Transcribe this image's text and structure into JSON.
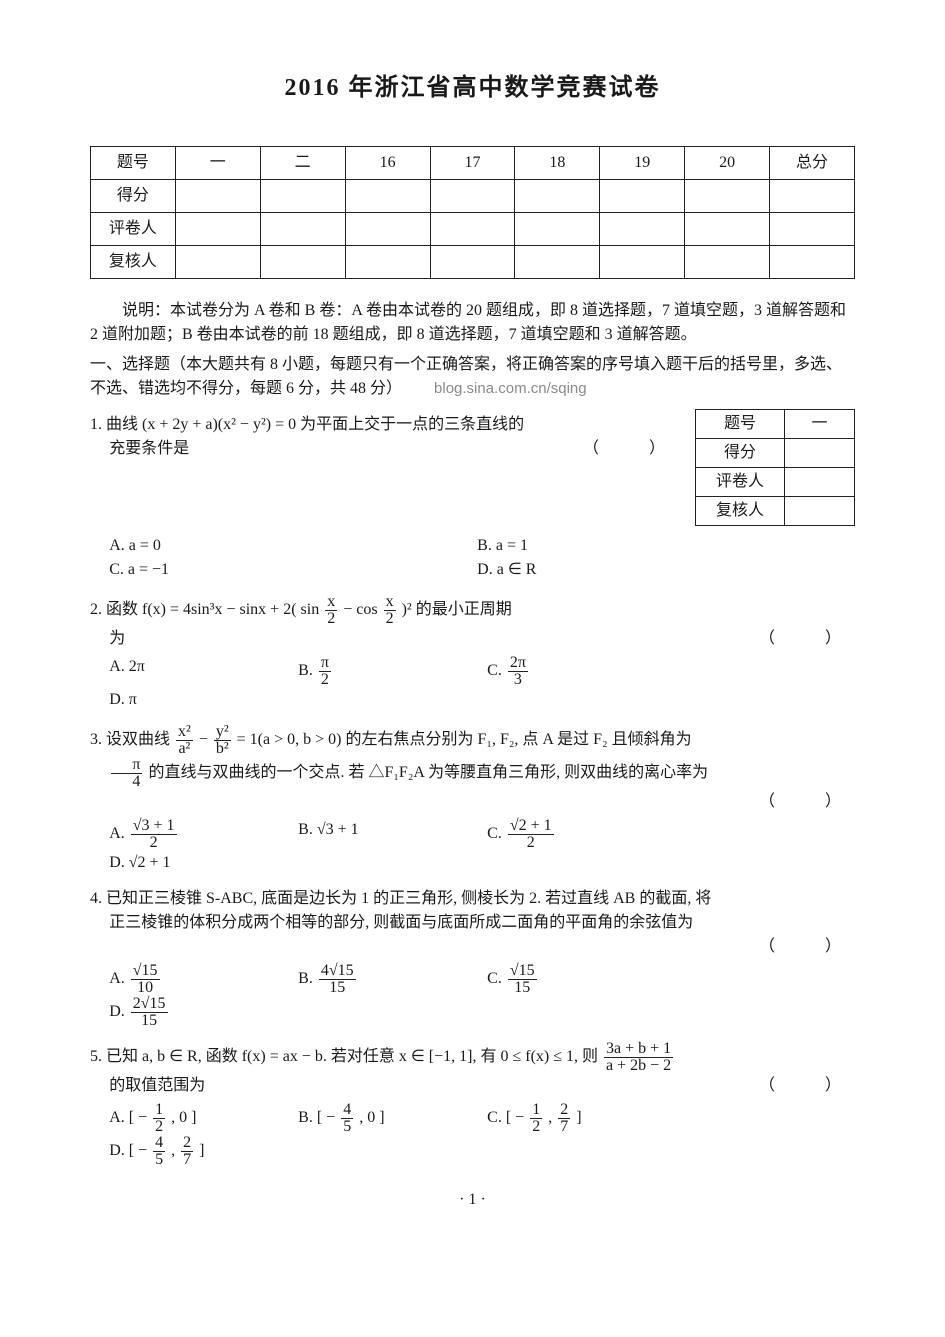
{
  "title": "2016 年浙江省高中数学竞赛试卷",
  "score_table": {
    "headers": [
      "题号",
      "一",
      "二",
      "16",
      "17",
      "18",
      "19",
      "20",
      "总分"
    ],
    "rows": [
      "得分",
      "评卷人",
      "复核人"
    ]
  },
  "instructions": "说明：本试卷分为 A 卷和 B 卷：A 卷由本试卷的 20 题组成，即 8 道选择题，7 道填空题，3 道解答题和 2 道附加题；B 卷由本试卷的前 18 题组成，即 8 道选择题，7 道填空题和 3 道解答题。",
  "section1_heading": "一、选择题（本大题共有 8 小题，每题只有一个正确答案，将正确答案的序号填入题干后的括号里，多选、不选、错选均不得分，每题 6 分，共 48 分）",
  "watermark": "blog.sina.com.cn/sqing",
  "mini_table": {
    "rows": [
      [
        "题号",
        "一"
      ],
      [
        "得分",
        ""
      ],
      [
        "评卷人",
        ""
      ],
      [
        "复核人",
        ""
      ]
    ]
  },
  "q1": {
    "text_a": "1. 曲线 (x + 2y + a)(x² − y²) = 0 为平面上交于一点的三条直线的",
    "text_b": "充要条件是",
    "paren": "（　　）",
    "A": "A. a = 0",
    "B": "B. a = 1",
    "C": "C. a = −1",
    "D": "D. a ∈ R"
  },
  "q2": {
    "text_a": "2. 函数 f(x) = 4sin³x − sinx + 2( sin",
    "text_b": " − cos",
    "text_c": " )² 的最小正周期",
    "frac_half_num": "x",
    "frac_half_den": "2",
    "line2": "为",
    "paren": "（　　）",
    "A": "A. 2π",
    "B_pre": "B. ",
    "B_num": "π",
    "B_den": "2",
    "C_pre": "C. ",
    "C_num": "2π",
    "C_den": "3",
    "D": "D. π"
  },
  "q3": {
    "text_a": "3. 设双曲线 ",
    "x2": "x²",
    "a2": "a²",
    "minus": " − ",
    "y2": "y²",
    "b2": "b²",
    "text_b": " = 1(a > 0, b > 0) 的左右焦点分别为 F₁, F₂, 点 A 是过 F₂ 且倾斜角为",
    "line2_pre": "",
    "pi4_num": "π",
    "pi4_den": "4",
    "line2_post": " 的直线与双曲线的一个交点. 若 △F₁F₂A 为等腰直角三角形, 则双曲线的离心率为",
    "paren": "（　　）",
    "A_pre": "A. ",
    "A_num": "√3 + 1",
    "A_den": "2",
    "B": "B. √3 + 1",
    "C_pre": "C. ",
    "C_num": "√2 + 1",
    "C_den": "2",
    "D": "D. √2 + 1"
  },
  "q4": {
    "text_a": "4. 已知正三棱锥 S-ABC, 底面是边长为 1 的正三角形, 侧棱长为 2. 若过直线 AB 的截面, 将",
    "text_b": "正三棱锥的体积分成两个相等的部分, 则截面与底面所成二面角的平面角的余弦值为",
    "paren": "（　　）",
    "A_pre": "A. ",
    "A_num": "√15",
    "A_den": "10",
    "B_pre": "B. ",
    "B_num": "4√15",
    "B_den": "15",
    "C_pre": "C. ",
    "C_num": "√15",
    "C_den": "15",
    "D_pre": "D. ",
    "D_num": "2√15",
    "D_den": "15"
  },
  "q5": {
    "text_a": "5. 已知 a, b ∈ R, 函数 f(x) = ax − b. 若对任意 x ∈ [−1, 1], 有 0 ≤ f(x) ≤ 1, 则 ",
    "frac_num": "3a + b + 1",
    "frac_den": "a + 2b − 2",
    "text_b": "的取值范围为",
    "paren": "（　　）",
    "A_pre": "A. [ − ",
    "A_num": "1",
    "A_den": "2",
    "A_post": " , 0 ]",
    "B_pre": "B. [ − ",
    "B_num": "4",
    "B_den": "5",
    "B_post": " , 0 ]",
    "C_pre": "C. [ − ",
    "C_num1": "1",
    "C_den1": "2",
    "C_mid": " , ",
    "C_num2": "2",
    "C_den2": "7",
    "C_post": " ]",
    "D_pre": "D. [ − ",
    "D_num1": "4",
    "D_den1": "5",
    "D_mid": " , ",
    "D_num2": "2",
    "D_den2": "7",
    "D_post": " ]"
  },
  "page_num": "· 1 ·"
}
